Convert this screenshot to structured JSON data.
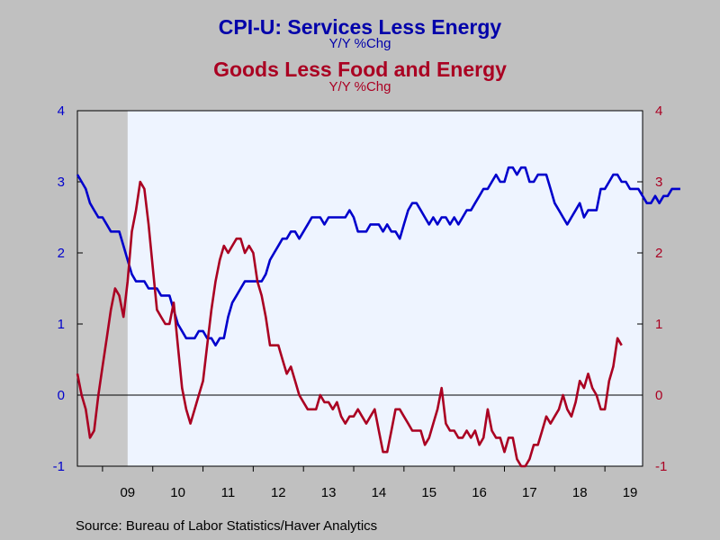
{
  "chart_data": {
    "type": "line",
    "title": "CPI-U: Services Less Energy",
    "title_subtitle": "Y/Y %Chg",
    "title2": "Goods Less Food and Energy",
    "title2_subtitle": "Y/Y %Chg",
    "source": "Source:  Bureau of Labor Statistics/Haver Analytics",
    "ylim": [
      -1,
      4
    ],
    "y_ticks": [
      "-1",
      "0",
      "1",
      "2",
      "3",
      "4"
    ],
    "x_labels": [
      "09",
      "10",
      "11",
      "12",
      "13",
      "14",
      "15",
      "16",
      "17",
      "18",
      "19"
    ],
    "x_start": "2008-07",
    "recession": [
      "2008-07",
      "2009-06"
    ],
    "colors": {
      "series1": "#0000cc",
      "series2": "#aa0022",
      "plot_bg": "#eef4ff",
      "recession": "#c8c8c8"
    },
    "series": [
      {
        "name": "CPI-U: Services Less Energy",
        "axis": "left",
        "values": [
          3.1,
          3.0,
          2.9,
          2.7,
          2.6,
          2.5,
          2.5,
          2.4,
          2.3,
          2.3,
          2.3,
          2.1,
          1.9,
          1.7,
          1.6,
          1.6,
          1.6,
          1.5,
          1.5,
          1.5,
          1.4,
          1.4,
          1.4,
          1.2,
          1.0,
          0.9,
          0.8,
          0.8,
          0.8,
          0.9,
          0.9,
          0.8,
          0.8,
          0.7,
          0.8,
          0.8,
          1.1,
          1.3,
          1.4,
          1.5,
          1.6,
          1.6,
          1.6,
          1.6,
          1.6,
          1.7,
          1.9,
          2.0,
          2.1,
          2.2,
          2.2,
          2.3,
          2.3,
          2.2,
          2.3,
          2.4,
          2.5,
          2.5,
          2.5,
          2.4,
          2.5,
          2.5,
          2.5,
          2.5,
          2.5,
          2.6,
          2.5,
          2.3,
          2.3,
          2.3,
          2.4,
          2.4,
          2.4,
          2.3,
          2.4,
          2.3,
          2.3,
          2.2,
          2.4,
          2.6,
          2.7,
          2.7,
          2.6,
          2.5,
          2.4,
          2.5,
          2.4,
          2.5,
          2.5,
          2.4,
          2.5,
          2.4,
          2.5,
          2.6,
          2.6,
          2.7,
          2.8,
          2.9,
          2.9,
          3.0,
          3.1,
          3.0,
          3.0,
          3.2,
          3.2,
          3.1,
          3.2,
          3.2,
          3.0,
          3.0,
          3.1,
          3.1,
          3.1,
          2.9,
          2.7,
          2.6,
          2.5,
          2.4,
          2.5,
          2.6,
          2.7,
          2.5,
          2.6,
          2.6,
          2.6,
          2.9,
          2.9,
          3.0,
          3.1,
          3.1,
          3.0,
          3.0,
          2.9,
          2.9,
          2.9,
          2.8,
          2.7,
          2.7,
          2.8,
          2.7,
          2.8,
          2.8,
          2.9,
          2.9,
          2.9
        ]
      },
      {
        "name": "Goods Less Food and Energy",
        "axis": "right",
        "values": [
          0.3,
          0.0,
          -0.2,
          -0.6,
          -0.5,
          0.0,
          0.4,
          0.8,
          1.2,
          1.5,
          1.4,
          1.1,
          1.6,
          2.3,
          2.6,
          3.0,
          2.9,
          2.4,
          1.8,
          1.2,
          1.1,
          1.0,
          1.0,
          1.3,
          0.7,
          0.1,
          -0.2,
          -0.4,
          -0.2,
          0.0,
          0.2,
          0.7,
          1.2,
          1.6,
          1.9,
          2.1,
          2.0,
          2.1,
          2.2,
          2.2,
          2.0,
          2.1,
          2.0,
          1.6,
          1.4,
          1.1,
          0.7,
          0.7,
          0.7,
          0.5,
          0.3,
          0.4,
          0.2,
          0.0,
          -0.1,
          -0.2,
          -0.2,
          -0.2,
          0.0,
          -0.1,
          -0.1,
          -0.2,
          -0.1,
          -0.3,
          -0.4,
          -0.3,
          -0.3,
          -0.2,
          -0.3,
          -0.4,
          -0.3,
          -0.2,
          -0.5,
          -0.8,
          -0.8,
          -0.5,
          -0.2,
          -0.2,
          -0.3,
          -0.4,
          -0.5,
          -0.5,
          -0.5,
          -0.7,
          -0.6,
          -0.4,
          -0.2,
          0.1,
          -0.4,
          -0.5,
          -0.5,
          -0.6,
          -0.6,
          -0.5,
          -0.6,
          -0.5,
          -0.7,
          -0.6,
          -0.2,
          -0.5,
          -0.6,
          -0.6,
          -0.8,
          -0.6,
          -0.6,
          -0.9,
          -1.0,
          -1.0,
          -0.9,
          -0.7,
          -0.7,
          -0.5,
          -0.3,
          -0.4,
          -0.3,
          -0.2,
          0.0,
          -0.2,
          -0.3,
          -0.1,
          0.2,
          0.1,
          0.3,
          0.1,
          0.0,
          -0.2,
          -0.2,
          0.2,
          0.4,
          0.8,
          0.7
        ]
      }
    ]
  }
}
